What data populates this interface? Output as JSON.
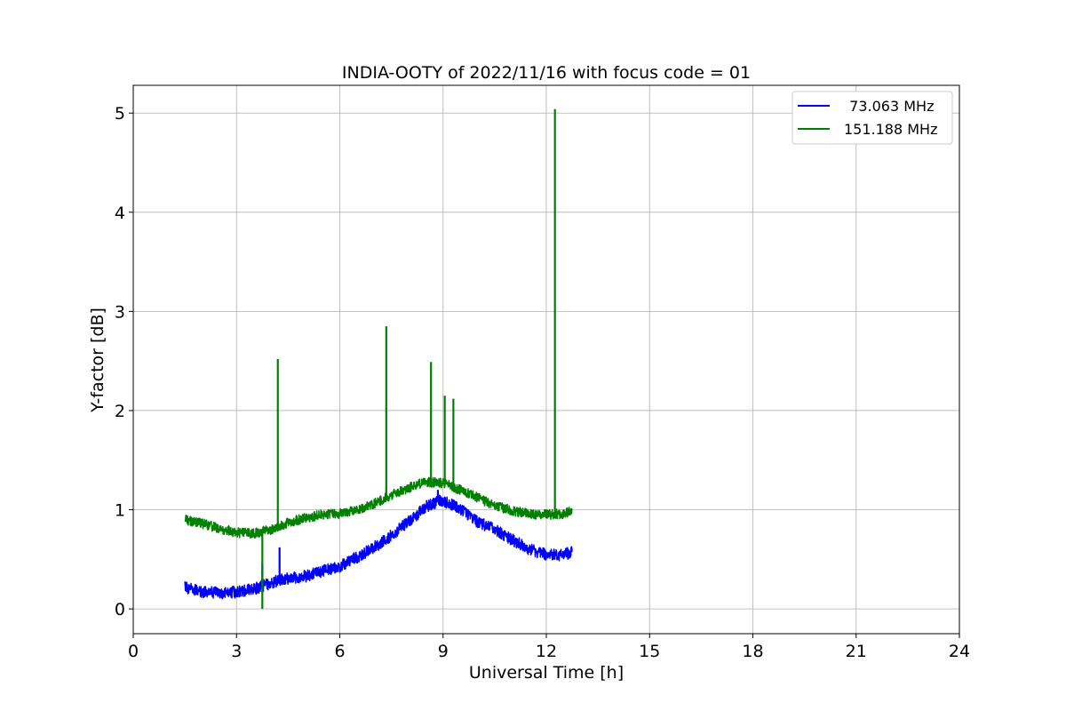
{
  "chart_data": {
    "type": "line",
    "title": "INDIA-OOTY of 2022/11/16 with focus code = 01",
    "xlabel": "Universal Time [h]",
    "ylabel": "Y-factor [dB]",
    "xlim": [
      0,
      24
    ],
    "ylim": [
      -0.25,
      5.28
    ],
    "xticks": [
      0,
      3,
      6,
      9,
      12,
      15,
      18,
      21,
      24
    ],
    "yticks": [
      0,
      1,
      2,
      3,
      4,
      5
    ],
    "grid": true,
    "legend_position": "top-right",
    "series": [
      {
        "name": "  73.063 MHz",
        "color": "#0000ff",
        "noise": 0.06,
        "points": [
          [
            1.5,
            0.22
          ],
          [
            2.0,
            0.17
          ],
          [
            2.5,
            0.16
          ],
          [
            3.0,
            0.17
          ],
          [
            3.5,
            0.2
          ],
          [
            4.0,
            0.26
          ],
          [
            4.3,
            0.3
          ],
          [
            5.0,
            0.33
          ],
          [
            5.5,
            0.38
          ],
          [
            6.0,
            0.43
          ],
          [
            6.5,
            0.52
          ],
          [
            7.0,
            0.62
          ],
          [
            7.5,
            0.74
          ],
          [
            8.0,
            0.88
          ],
          [
            8.5,
            1.03
          ],
          [
            8.9,
            1.09
          ],
          [
            9.3,
            1.05
          ],
          [
            9.7,
            0.96
          ],
          [
            10.0,
            0.88
          ],
          [
            10.5,
            0.8
          ],
          [
            11.0,
            0.7
          ],
          [
            11.5,
            0.6
          ],
          [
            12.0,
            0.55
          ],
          [
            12.4,
            0.54
          ],
          [
            12.75,
            0.57
          ]
        ],
        "spikes": [
          [
            3.75,
            0.45
          ],
          [
            4.25,
            0.62
          ],
          [
            8.85,
            1.2
          ]
        ]
      },
      {
        "name": "151.188 MHz",
        "color": "#008000",
        "noise": 0.05,
        "points": [
          [
            1.5,
            0.9
          ],
          [
            2.0,
            0.86
          ],
          [
            2.5,
            0.81
          ],
          [
            3.0,
            0.77
          ],
          [
            3.5,
            0.76
          ],
          [
            4.0,
            0.8
          ],
          [
            4.5,
            0.87
          ],
          [
            5.0,
            0.92
          ],
          [
            5.5,
            0.95
          ],
          [
            6.0,
            0.96
          ],
          [
            6.5,
            0.99
          ],
          [
            7.0,
            1.06
          ],
          [
            7.5,
            1.15
          ],
          [
            8.0,
            1.22
          ],
          [
            8.5,
            1.28
          ],
          [
            9.0,
            1.27
          ],
          [
            9.5,
            1.2
          ],
          [
            10.0,
            1.12
          ],
          [
            10.5,
            1.04
          ],
          [
            11.0,
            0.99
          ],
          [
            11.5,
            0.96
          ],
          [
            12.0,
            0.95
          ],
          [
            12.5,
            0.96
          ],
          [
            12.75,
            1.0
          ]
        ],
        "spikes": [
          [
            3.75,
            0.0
          ],
          [
            4.2,
            2.52
          ],
          [
            7.35,
            2.85
          ],
          [
            8.65,
            2.49
          ],
          [
            9.05,
            2.15
          ],
          [
            9.3,
            2.12
          ],
          [
            12.25,
            5.04
          ]
        ]
      }
    ]
  }
}
